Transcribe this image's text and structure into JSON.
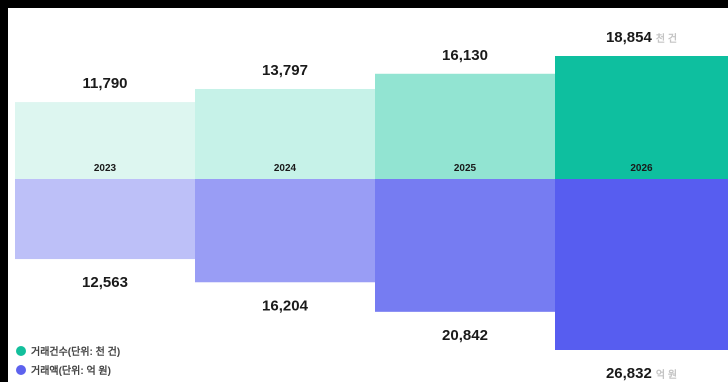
{
  "chart_data": {
    "type": "bar",
    "categories": [
      "2023",
      "2024",
      "2025",
      "2026"
    ],
    "series": [
      {
        "name": "거래건수(단위: 천 건)",
        "unit": "천 건",
        "values": [
          11790,
          13797,
          16130,
          18854
        ],
        "labels": [
          "11,790",
          "13,797",
          "16,130",
          "18,854"
        ],
        "colors": [
          "#ddf6f0",
          "#c6f2e8",
          "#92e4d2",
          "#0ebf9f"
        ],
        "legend_color": "#13bf9c"
      },
      {
        "name": "거래액(단위: 억 원)",
        "unit": "억 원",
        "values": [
          12563,
          16204,
          20842,
          26832
        ],
        "labels": [
          "12,563",
          "16,204",
          "20,842",
          "26,832"
        ],
        "colors": [
          "#bdc0f8",
          "#999df5",
          "#767cf2",
          "#575df0"
        ],
        "legend_color": "#5d62ee"
      }
    ],
    "layout": "mirrored (counts above baseline, amounts below)",
    "legend_position": "bottom-left",
    "grid": false
  }
}
